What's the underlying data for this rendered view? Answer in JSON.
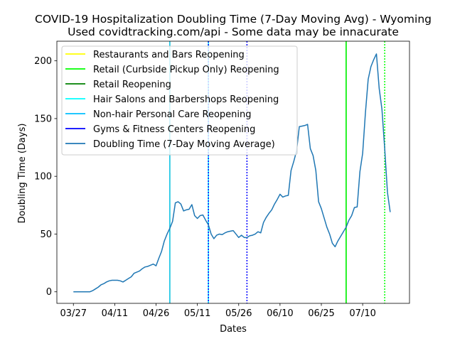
{
  "chart_data": {
    "type": "line",
    "title": "COVID-19 Hospitalization Doubling Time (7-Day Moving Avg) - Wyoming",
    "subtitle": "Used covidtracking.com/api - Some data may be innacurate",
    "xlabel": "Dates",
    "ylabel": "Doubling Time (Days)",
    "x_start": "2020-03-27",
    "x_ticks": [
      "03/27",
      "04/11",
      "04/26",
      "05/11",
      "05/26",
      "06/10",
      "06/25",
      "07/10"
    ],
    "xlim": [
      "2020-03-21",
      "2020-07-27"
    ],
    "ylim": [
      -10,
      217
    ],
    "y_ticks": [
      0,
      50,
      100,
      150,
      200
    ],
    "legend_location": "upper left",
    "series": [
      {
        "name": "Doubling Time (7-Day Moving Average)",
        "color": "#1f77b4",
        "points": [
          [
            "2020-03-27",
            0
          ],
          [
            "2020-03-28",
            0
          ],
          [
            "2020-03-29",
            0
          ],
          [
            "2020-03-30",
            0
          ],
          [
            "2020-03-31",
            0
          ],
          [
            "2020-04-01",
            0
          ],
          [
            "2020-04-02",
            0
          ],
          [
            "2020-04-03",
            1
          ],
          [
            "2020-04-04",
            2.5
          ],
          [
            "2020-04-05",
            4
          ],
          [
            "2020-04-06",
            6
          ],
          [
            "2020-04-07",
            7
          ],
          [
            "2020-04-08",
            8.5
          ],
          [
            "2020-04-09",
            9.5
          ],
          [
            "2020-04-10",
            10
          ],
          [
            "2020-04-11",
            10
          ],
          [
            "2020-04-12",
            10
          ],
          [
            "2020-04-13",
            9.5
          ],
          [
            "2020-04-14",
            8.5
          ],
          [
            "2020-04-15",
            10
          ],
          [
            "2020-04-16",
            11.5
          ],
          [
            "2020-04-17",
            13
          ],
          [
            "2020-04-18",
            16
          ],
          [
            "2020-04-19",
            17
          ],
          [
            "2020-04-20",
            18
          ],
          [
            "2020-04-21",
            20
          ],
          [
            "2020-04-22",
            21.5
          ],
          [
            "2020-04-23",
            22
          ],
          [
            "2020-04-24",
            23
          ],
          [
            "2020-04-25",
            24
          ],
          [
            "2020-04-26",
            22.5
          ],
          [
            "2020-04-27",
            29
          ],
          [
            "2020-04-28",
            35
          ],
          [
            "2020-04-29",
            44
          ],
          [
            "2020-04-30",
            50
          ],
          [
            "2020-05-01",
            55
          ],
          [
            "2020-05-02",
            61
          ],
          [
            "2020-05-03",
            77
          ],
          [
            "2020-05-04",
            78
          ],
          [
            "2020-05-05",
            76
          ],
          [
            "2020-05-06",
            70
          ],
          [
            "2020-05-07",
            71
          ],
          [
            "2020-05-08",
            71.5
          ],
          [
            "2020-05-09",
            75.5
          ],
          [
            "2020-05-10",
            66
          ],
          [
            "2020-05-11",
            63.5
          ],
          [
            "2020-05-12",
            66
          ],
          [
            "2020-05-13",
            66.5
          ],
          [
            "2020-05-14",
            62
          ],
          [
            "2020-05-15",
            58
          ],
          [
            "2020-05-16",
            50
          ],
          [
            "2020-05-17",
            46
          ],
          [
            "2020-05-18",
            49
          ],
          [
            "2020-05-19",
            50
          ],
          [
            "2020-05-20",
            49.5
          ],
          [
            "2020-05-21",
            51
          ],
          [
            "2020-05-22",
            52
          ],
          [
            "2020-05-23",
            52.5
          ],
          [
            "2020-05-24",
            53
          ],
          [
            "2020-05-25",
            50
          ],
          [
            "2020-05-26",
            47
          ],
          [
            "2020-05-27",
            49
          ],
          [
            "2020-05-28",
            47
          ],
          [
            "2020-05-29",
            47
          ],
          [
            "2020-05-30",
            48.5
          ],
          [
            "2020-05-31",
            49
          ],
          [
            "2020-06-01",
            50
          ],
          [
            "2020-06-02",
            52
          ],
          [
            "2020-06-03",
            51
          ],
          [
            "2020-06-04",
            60
          ],
          [
            "2020-06-05",
            64.5
          ],
          [
            "2020-06-06",
            68
          ],
          [
            "2020-06-07",
            71
          ],
          [
            "2020-06-08",
            76
          ],
          [
            "2020-06-09",
            80
          ],
          [
            "2020-06-10",
            84.5
          ],
          [
            "2020-06-11",
            82
          ],
          [
            "2020-06-12",
            83
          ],
          [
            "2020-06-13",
            83.5
          ],
          [
            "2020-06-14",
            105
          ],
          [
            "2020-06-15",
            113
          ],
          [
            "2020-06-16",
            122
          ],
          [
            "2020-06-17",
            143
          ],
          [
            "2020-06-18",
            143.5
          ],
          [
            "2020-06-19",
            144
          ],
          [
            "2020-06-20",
            145
          ],
          [
            "2020-06-21",
            124
          ],
          [
            "2020-06-22",
            118
          ],
          [
            "2020-06-23",
            105
          ],
          [
            "2020-06-24",
            78
          ],
          [
            "2020-06-25",
            72
          ],
          [
            "2020-06-26",
            64
          ],
          [
            "2020-06-27",
            56
          ],
          [
            "2020-06-28",
            50
          ],
          [
            "2020-06-29",
            42
          ],
          [
            "2020-06-30",
            39
          ],
          [
            "2020-07-01",
            44
          ],
          [
            "2020-07-02",
            48
          ],
          [
            "2020-07-03",
            52
          ],
          [
            "2020-07-04",
            56
          ],
          [
            "2020-07-05",
            62
          ],
          [
            "2020-07-06",
            66
          ],
          [
            "2020-07-07",
            73
          ],
          [
            "2020-07-08",
            73.5
          ],
          [
            "2020-07-09",
            104
          ],
          [
            "2020-07-10",
            120
          ],
          [
            "2020-07-11",
            155
          ],
          [
            "2020-07-12",
            184
          ],
          [
            "2020-07-13",
            195
          ],
          [
            "2020-07-14",
            201
          ],
          [
            "2020-07-15",
            206
          ],
          [
            "2020-07-16",
            176
          ],
          [
            "2020-07-17",
            158
          ],
          [
            "2020-07-18",
            124
          ],
          [
            "2020-07-19",
            86
          ],
          [
            "2020-07-20",
            69
          ]
        ]
      }
    ],
    "events": [
      {
        "name": "Restaurants and Bars Reopening",
        "date": "2020-05-01",
        "color": "#ffff00",
        "style": "solid"
      },
      {
        "name": "Retail (Curbside Pickup Only) Reopening",
        "date": "2020-07-18",
        "color": "#00ff00",
        "style": "dotted"
      },
      {
        "name": "Retail Reopening",
        "date": "2020-07-04",
        "color": "#008000",
        "style": "solid",
        "overlay_color": "#00ff00"
      },
      {
        "name": "Hair Salons and Barbershops Reopening",
        "date": "2020-05-15",
        "color": "#00ffff",
        "style": "solid"
      },
      {
        "name": "Non-hair Personal Care Reopening",
        "date": "2020-05-01",
        "color": "#00bfff",
        "style": "solid"
      },
      {
        "name": "Gyms & Fitness Centers Reopening",
        "date": "2020-05-15",
        "color": "#0000ff",
        "style": "dotted"
      },
      {
        "name": "Gyms & Fitness Centers Reopening",
        "date": "2020-05-29",
        "color": "#0000ff",
        "style": "dotted"
      }
    ]
  }
}
